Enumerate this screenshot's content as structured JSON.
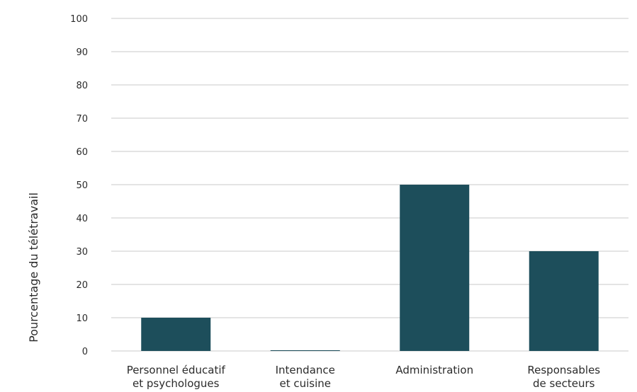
{
  "chart_data": {
    "type": "bar",
    "ylabel": "Pourcentage du télétravail",
    "ylim": [
      0,
      100
    ],
    "yticks": [
      0,
      10,
      20,
      30,
      40,
      50,
      60,
      70,
      80,
      90,
      100
    ],
    "grid": true,
    "categories": [
      [
        "Personnel éducatif",
        "et psychologues"
      ],
      [
        "Intendance",
        "et cuisine"
      ],
      [
        "Administration"
      ],
      [
        "Responsables",
        "de secteurs"
      ]
    ],
    "values": [
      10,
      0,
      50,
      30
    ],
    "bar_color": "#1d4e5b"
  }
}
